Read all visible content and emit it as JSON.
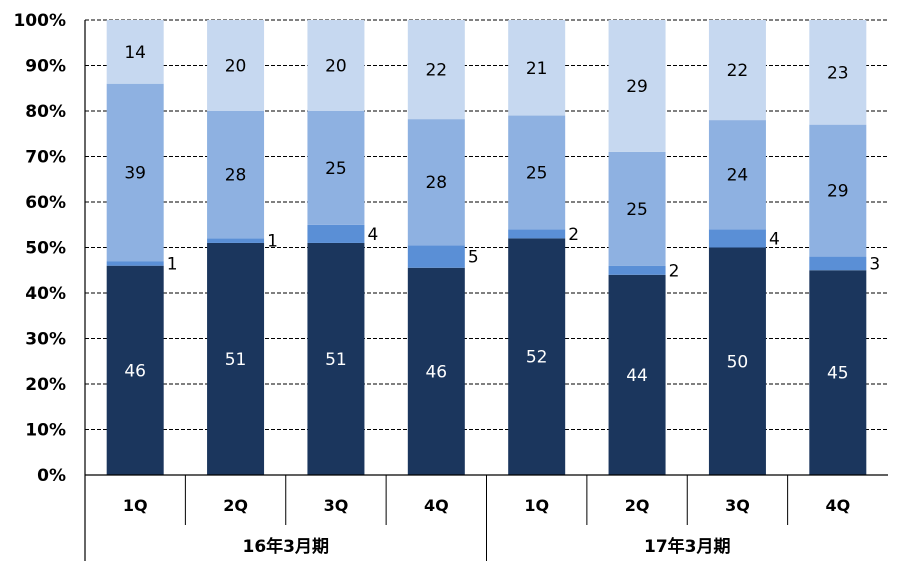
{
  "chart_data": {
    "type": "bar",
    "stacked": true,
    "normalized": true,
    "categories": [
      "1Q",
      "2Q",
      "3Q",
      "4Q",
      "1Q",
      "2Q",
      "3Q",
      "4Q"
    ],
    "groups": [
      {
        "label": "16年3月期",
        "span": [
          0,
          3
        ]
      },
      {
        "label": "17年3月期",
        "span": [
          4,
          7
        ]
      }
    ],
    "series": [
      {
        "values": [
          46,
          51,
          51,
          46,
          52,
          44,
          50,
          45
        ],
        "color": "#1b365d",
        "label_color": "#ffffff"
      },
      {
        "values": [
          1,
          1,
          4,
          5,
          2,
          2,
          4,
          3
        ],
        "color": "#5a8fd6",
        "label_color": "#000000",
        "label_outside": true
      },
      {
        "values": [
          39,
          28,
          25,
          28,
          25,
          25,
          24,
          29
        ],
        "color": "#8eb1e1",
        "label_color": "#000000"
      },
      {
        "values": [
          14,
          20,
          20,
          22,
          21,
          29,
          22,
          23
        ],
        "color": "#c6d8f0",
        "label_color": "#000000"
      }
    ],
    "y_ticks": [
      "0%",
      "10%",
      "20%",
      "30%",
      "40%",
      "50%",
      "60%",
      "70%",
      "80%",
      "90%",
      "100%"
    ],
    "ylim": [
      0,
      100
    ],
    "grid": "dashed horizontal",
    "title": "",
    "xlabel": "",
    "ylabel": ""
  }
}
